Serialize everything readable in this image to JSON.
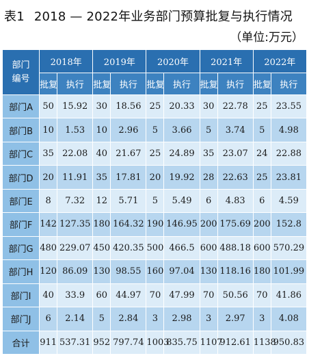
{
  "title": {
    "number": "表1",
    "text": "2018 — 2022年业务部门预算批复与执行情况"
  },
  "unit": "（单位:万元）",
  "table": {
    "dept_header_line1": "部门",
    "dept_header_line2": "编号",
    "years": [
      "2018年",
      "2019年",
      "2020年",
      "2021年",
      "2022年"
    ],
    "sub_headers": [
      "批复",
      "执行"
    ],
    "rows": [
      {
        "dept": "部门A",
        "cells": [
          "50",
          "15.92",
          "30",
          "18.56",
          "25",
          "20.33",
          "30",
          "22.78",
          "25",
          "23.55"
        ]
      },
      {
        "dept": "部门B",
        "cells": [
          "10",
          "1.53",
          "10",
          "2.96",
          "5",
          "3.66",
          "5",
          "3.74",
          "5",
          "4.98"
        ]
      },
      {
        "dept": "部门C",
        "cells": [
          "35",
          "22.08",
          "40",
          "21.67",
          "25",
          "24.89",
          "35",
          "23.07",
          "24",
          "22.88"
        ]
      },
      {
        "dept": "部门D",
        "cells": [
          "20",
          "11.91",
          "35",
          "17.81",
          "20",
          "19.92",
          "28",
          "22.63",
          "25",
          "23.81"
        ]
      },
      {
        "dept": "部门E",
        "cells": [
          "8",
          "7.32",
          "12",
          "5.71",
          "5",
          "5.49",
          "6",
          "4.83",
          "6",
          "4.59"
        ]
      },
      {
        "dept": "部门F",
        "cells": [
          "142",
          "127.35",
          "180",
          "164.32",
          "190",
          "146.95",
          "200",
          "175.69",
          "200",
          "152.8"
        ]
      },
      {
        "dept": "部门G",
        "cells": [
          "480",
          "229.07",
          "450",
          "420.35",
          "500",
          "466.5",
          "600",
          "488.18",
          "600",
          "570.29"
        ]
      },
      {
        "dept": "部门H",
        "cells": [
          "120",
          "86.09",
          "130",
          "98.55",
          "160",
          "97.04",
          "130",
          "118.16",
          "180",
          "101.99"
        ]
      },
      {
        "dept": "部门I",
        "cells": [
          "40",
          "33.9",
          "60",
          "44.97",
          "70",
          "47.99",
          "70",
          "50.56",
          "70",
          "41.86"
        ]
      },
      {
        "dept": "部门J",
        "cells": [
          "6",
          "2.14",
          "5",
          "2.84",
          "3",
          "2.98",
          "3",
          "2.97",
          "3",
          "4.08"
        ]
      },
      {
        "dept": "合计",
        "cells": [
          "911",
          "537.31",
          "952",
          "797.74",
          "1003",
          "835.75",
          "1107",
          "912.61",
          "1138",
          "950.83"
        ]
      }
    ],
    "colors": {
      "header_dark": "#2a6fb0",
      "header_sub": "#3d82c0",
      "dept_column": "#8fc0e6",
      "row_light": "#dcecf8",
      "row_mid": "#b7d6ef"
    }
  }
}
